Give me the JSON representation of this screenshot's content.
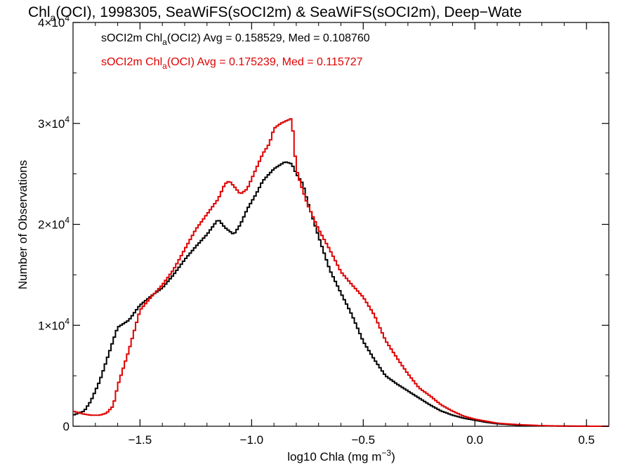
{
  "chart_data": {
    "type": "line",
    "title": {
      "pre": "Chl",
      "sub": "a",
      "post": "(OCI), 1998305, SeaWiFS(sOCI2m) & SeaWiFS(sOCI2m), Deep−Wate"
    },
    "xlabel": {
      "pre": "log10 Chla (mg m",
      "sup": "−3",
      "post": ")"
    },
    "ylabel": "Number of Observations",
    "xlim": [
      -1.8,
      0.6
    ],
    "ylim": [
      0,
      40000
    ],
    "x_ticks": [
      {
        "value": -1.5,
        "label": "−1.5"
      },
      {
        "value": -1.0,
        "label": "−1.0"
      },
      {
        "value": -0.5,
        "label": "−0.5"
      },
      {
        "value": 0.0,
        "label": "0.0"
      },
      {
        "value": 0.5,
        "label": "0.5"
      }
    ],
    "y_ticks": [
      {
        "value": 0,
        "base": "0",
        "exp": ""
      },
      {
        "value": 10000,
        "base": "1×10",
        "exp": "4"
      },
      {
        "value": 20000,
        "base": "2×10",
        "exp": "4"
      },
      {
        "value": 30000,
        "base": "3×10",
        "exp": "4"
      },
      {
        "value": 40000,
        "base": "4×10",
        "exp": "4"
      }
    ],
    "series": [
      {
        "color": "#000000",
        "legend": {
          "pre": "sOCI2m Chl",
          "sub": "a",
          "post": "(OCI2) Avg = 0.158529, Med = 0.108760"
        },
        "x": [
          -1.8,
          -1.75,
          -1.72,
          -1.68,
          -1.65,
          -1.62,
          -1.6,
          -1.55,
          -1.5,
          -1.45,
          -1.4,
          -1.35,
          -1.3,
          -1.25,
          -1.2,
          -1.15,
          -1.12,
          -1.08,
          -1.05,
          -1.02,
          -0.98,
          -0.95,
          -0.9,
          -0.85,
          -0.82,
          -0.8,
          -0.77,
          -0.75,
          -0.7,
          -0.65,
          -0.6,
          -0.55,
          -0.5,
          -0.45,
          -0.4,
          -0.35,
          -0.3,
          -0.25,
          -0.2,
          -0.15,
          -0.1,
          -0.05,
          0.0,
          0.05,
          0.1,
          0.2,
          0.3,
          0.4,
          0.5,
          0.6
        ],
        "y": [
          1100,
          1500,
          2500,
          4500,
          6500,
          8500,
          9800,
          10500,
          12000,
          12900,
          13700,
          15000,
          16500,
          17800,
          19000,
          20500,
          19700,
          19000,
          20000,
          21500,
          23000,
          24300,
          25500,
          26200,
          26000,
          25000,
          24000,
          22300,
          18800,
          15500,
          13200,
          11000,
          8400,
          6600,
          5000,
          4200,
          3500,
          2800,
          2100,
          1500,
          1100,
          800,
          600,
          400,
          250,
          100,
          40,
          15,
          5,
          0
        ]
      },
      {
        "color": "#e00000",
        "legend": {
          "pre": "sOCI2m Chl",
          "sub": "a",
          "post": "(OCI) Avg = 0.175239, Med = 0.115727"
        },
        "x": [
          -1.8,
          -1.75,
          -1.72,
          -1.68,
          -1.65,
          -1.62,
          -1.6,
          -1.55,
          -1.5,
          -1.45,
          -1.4,
          -1.35,
          -1.3,
          -1.25,
          -1.2,
          -1.15,
          -1.12,
          -1.1,
          -1.08,
          -1.05,
          -1.02,
          -1.0,
          -0.98,
          -0.95,
          -0.92,
          -0.9,
          -0.87,
          -0.84,
          -0.82,
          -0.81,
          -0.8,
          -0.78,
          -0.75,
          -0.7,
          -0.65,
          -0.6,
          -0.55,
          -0.5,
          -0.45,
          -0.4,
          -0.35,
          -0.3,
          -0.25,
          -0.2,
          -0.15,
          -0.1,
          -0.05,
          0.0,
          0.05,
          0.1,
          0.2,
          0.3,
          0.4,
          0.5,
          0.6
        ],
        "y": [
          1500,
          1200,
          1100,
          1100,
          1300,
          2000,
          4000,
          7500,
          11500,
          12800,
          14000,
          15500,
          17500,
          19500,
          21000,
          22500,
          24000,
          24300,
          23800,
          23000,
          23500,
          24500,
          25500,
          27000,
          28000,
          29500,
          30000,
          30300,
          30500,
          28000,
          25500,
          24000,
          22000,
          19500,
          17500,
          15300,
          14000,
          12800,
          11000,
          8500,
          6800,
          5200,
          3800,
          3000,
          2100,
          1500,
          1000,
          700,
          500,
          300,
          150,
          60,
          20,
          5,
          0
        ]
      }
    ]
  }
}
